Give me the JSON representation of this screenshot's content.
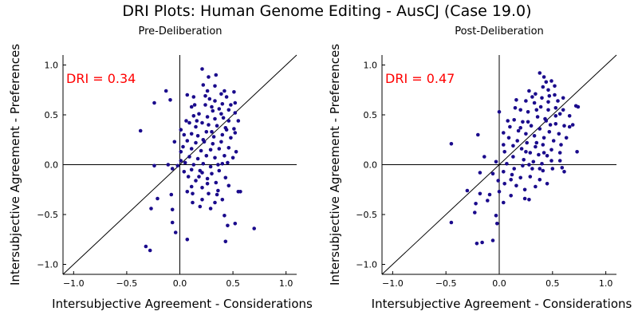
{
  "figure": {
    "title": "DRI Plots: Human Genome Editing - AusCJ (Case 19.0)"
  },
  "chart_data": [
    {
      "type": "scatter",
      "title": "Pre-Deliberation",
      "xlabel": "Intersubjective Agreement - Considerations",
      "ylabel": "Intersubjective Agreement - Preferences",
      "xlim": [
        -1.1,
        1.1
      ],
      "ylim": [
        -1.1,
        1.1
      ],
      "xticks": [
        "−1.0",
        "−0.5",
        "0.0",
        "0.5",
        "1.0"
      ],
      "yticks": [
        "−1.0",
        "−0.5",
        "0.0",
        "0.5",
        "1.0"
      ],
      "annotation": "DRI = 0.34",
      "annotation_color": "#ff0000",
      "point_color": "#1a0a8c",
      "reference_lines": [
        "x=0",
        "y=0",
        "y=x"
      ],
      "grid": false,
      "points": [
        [
          0.21,
          0.96
        ],
        [
          0.27,
          0.88
        ],
        [
          0.34,
          0.9
        ],
        [
          0.33,
          0.79
        ],
        [
          0.39,
          0.71
        ],
        [
          0.42,
          0.74
        ],
        [
          0.26,
          0.74
        ],
        [
          0.44,
          0.68
        ],
        [
          0.51,
          0.73
        ],
        [
          0.52,
          0.62
        ],
        [
          0.48,
          0.6
        ],
        [
          0.4,
          0.61
        ],
        [
          0.33,
          0.64
        ],
        [
          0.24,
          0.69
        ],
        [
          0.13,
          0.68
        ],
        [
          0.11,
          0.58
        ],
        [
          0.07,
          0.7
        ],
        [
          -0.13,
          0.74
        ],
        [
          -0.09,
          0.65
        ],
        [
          -0.24,
          0.62
        ],
        [
          0.24,
          0.6
        ],
        [
          0.3,
          0.58
        ],
        [
          0.37,
          0.56
        ],
        [
          0.46,
          0.55
        ],
        [
          0.52,
          0.52
        ],
        [
          0.18,
          0.51
        ],
        [
          0.13,
          0.49
        ],
        [
          0.26,
          0.48
        ],
        [
          0.33,
          0.46
        ],
        [
          0.41,
          0.47
        ],
        [
          0.46,
          0.44
        ],
        [
          0.55,
          0.44
        ],
        [
          0.51,
          0.36
        ],
        [
          0.43,
          0.37
        ],
        [
          0.35,
          0.39
        ],
        [
          0.27,
          0.4
        ],
        [
          0.21,
          0.42
        ],
        [
          0.15,
          0.38
        ],
        [
          0.09,
          0.42
        ],
        [
          0.06,
          0.44
        ],
        [
          0.11,
          0.31
        ],
        [
          0.17,
          0.29
        ],
        [
          0.25,
          0.33
        ],
        [
          0.32,
          0.28
        ],
        [
          0.4,
          0.3
        ],
        [
          0.48,
          0.27
        ],
        [
          0.39,
          0.23
        ],
        [
          0.31,
          0.21
        ],
        [
          0.23,
          0.23
        ],
        [
          0.15,
          0.22
        ],
        [
          0.07,
          0.24
        ],
        [
          0.03,
          0.18
        ],
        [
          0.11,
          0.16
        ],
        [
          0.2,
          0.14
        ],
        [
          0.29,
          0.15
        ],
        [
          0.37,
          0.16
        ],
        [
          0.46,
          0.17
        ],
        [
          0.53,
          0.13
        ],
        [
          0.42,
          0.09
        ],
        [
          0.33,
          0.07
        ],
        [
          0.25,
          0.09
        ],
        [
          0.17,
          0.06
        ],
        [
          0.09,
          0.08
        ],
        [
          0.01,
          0.13
        ],
        [
          -0.05,
          0.23
        ],
        [
          -0.37,
          0.34
        ],
        [
          0.01,
          0.04
        ],
        [
          0.05,
          0.02
        ],
        [
          0.13,
          0.0
        ],
        [
          0.22,
          0.01
        ],
        [
          0.29,
          -0.02
        ],
        [
          0.36,
          0.0
        ],
        [
          0.45,
          0.02
        ],
        [
          0.37,
          -0.06
        ],
        [
          0.3,
          -0.09
        ],
        [
          0.21,
          -0.08
        ],
        [
          0.11,
          -0.05
        ],
        [
          0.04,
          -0.07
        ],
        [
          -0.11,
          0.0
        ],
        [
          -0.24,
          -0.01
        ],
        [
          -0.02,
          -0.01
        ],
        [
          -0.07,
          -0.04
        ],
        [
          0.08,
          -0.12
        ],
        [
          0.15,
          -0.16
        ],
        [
          0.26,
          -0.14
        ],
        [
          0.34,
          -0.18
        ],
        [
          0.43,
          -0.13
        ],
        [
          0.21,
          -0.23
        ],
        [
          0.11,
          -0.22
        ],
        [
          0.12,
          -0.29
        ],
        [
          0.27,
          -0.29
        ],
        [
          0.36,
          -0.26
        ],
        [
          0.46,
          -0.21
        ],
        [
          0.21,
          -0.35
        ],
        [
          0.33,
          -0.38
        ],
        [
          0.4,
          -0.35
        ],
        [
          0.55,
          -0.27
        ],
        [
          0.57,
          -0.27
        ],
        [
          0.12,
          -0.38
        ],
        [
          0.19,
          -0.42
        ],
        [
          0.29,
          -0.44
        ],
        [
          0.42,
          -0.51
        ],
        [
          -0.08,
          -0.3
        ],
        [
          -0.21,
          -0.34
        ],
        [
          -0.27,
          -0.44
        ],
        [
          -0.07,
          -0.45
        ],
        [
          0.45,
          -0.61
        ],
        [
          0.52,
          -0.59
        ],
        [
          0.7,
          -0.64
        ],
        [
          -0.07,
          -0.58
        ],
        [
          -0.04,
          -0.68
        ],
        [
          0.07,
          -0.75
        ],
        [
          0.43,
          -0.77
        ],
        [
          -0.32,
          -0.82
        ],
        [
          -0.28,
          -0.86
        ],
        [
          0.01,
          0.35
        ],
        [
          0.22,
          0.8
        ],
        [
          0.31,
          0.54
        ],
        [
          0.44,
          0.35
        ],
        [
          0.19,
          -0.06
        ],
        [
          0.28,
          0.66
        ],
        [
          0.35,
          -0.3
        ],
        [
          0.26,
          -0.19
        ],
        [
          0.16,
          0.44
        ],
        [
          0.5,
          0.07
        ],
        [
          0.04,
          0.3
        ],
        [
          0.14,
          0.6
        ],
        [
          0.39,
          0.51
        ],
        [
          0.07,
          -0.27
        ],
        [
          0.3,
          0.33
        ],
        [
          0.4,
          0.01
        ],
        [
          0.52,
          0.32
        ],
        [
          0.22,
          0.25
        ],
        [
          0.18,
          -0.12
        ]
      ]
    },
    {
      "type": "scatter",
      "title": "Post-Deliberation",
      "xlabel": "Intersubjective Agreement - Considerations",
      "ylabel": "Intersubjective Agreement - Preferences",
      "xlim": [
        -1.1,
        1.1
      ],
      "ylim": [
        -1.1,
        1.1
      ],
      "xticks": [
        "−1.0",
        "−0.5",
        "0.0",
        "0.5",
        "1.0"
      ],
      "yticks": [
        "−1.0",
        "−0.5",
        "0.0",
        "0.5",
        "1.0"
      ],
      "annotation": "DRI = 0.47",
      "annotation_color": "#ff0000",
      "point_color": "#1a0a8c",
      "reference_lines": [
        "x=0",
        "y=0",
        "y=x"
      ],
      "grid": false,
      "points": [
        [
          0.38,
          0.92
        ],
        [
          0.42,
          0.88
        ],
        [
          0.44,
          0.83
        ],
        [
          0.49,
          0.84
        ],
        [
          0.41,
          0.78
        ],
        [
          0.46,
          0.75
        ],
        [
          0.52,
          0.79
        ],
        [
          0.34,
          0.71
        ],
        [
          0.4,
          0.67
        ],
        [
          0.47,
          0.69
        ],
        [
          0.55,
          0.64
        ],
        [
          0.6,
          0.67
        ],
        [
          0.72,
          0.59
        ],
        [
          0.74,
          0.58
        ],
        [
          0.28,
          0.74
        ],
        [
          0.25,
          0.64
        ],
        [
          0.33,
          0.62
        ],
        [
          0.39,
          0.58
        ],
        [
          0.46,
          0.55
        ],
        [
          0.53,
          0.57
        ],
        [
          0.57,
          0.51
        ],
        [
          0.66,
          0.49
        ],
        [
          0.69,
          0.4
        ],
        [
          0.61,
          0.39
        ],
        [
          0.53,
          0.41
        ],
        [
          0.44,
          0.44
        ],
        [
          0.36,
          0.48
        ],
        [
          0.27,
          0.53
        ],
        [
          0.2,
          0.55
        ],
        [
          0.15,
          0.57
        ],
        [
          0.14,
          0.45
        ],
        [
          0.22,
          0.43
        ],
        [
          0.3,
          0.39
        ],
        [
          0.38,
          0.36
        ],
        [
          0.47,
          0.33
        ],
        [
          0.56,
          0.31
        ],
        [
          0.63,
          0.27
        ],
        [
          0.73,
          0.13
        ],
        [
          0.51,
          0.24
        ],
        [
          0.42,
          0.27
        ],
        [
          0.33,
          0.29
        ],
        [
          0.25,
          0.31
        ],
        [
          0.18,
          0.34
        ],
        [
          0.1,
          0.38
        ],
        [
          0.0,
          0.53
        ],
        [
          0.04,
          0.32
        ],
        [
          0.09,
          0.27
        ],
        [
          0.17,
          0.24
        ],
        [
          0.26,
          0.22
        ],
        [
          0.34,
          0.18
        ],
        [
          0.41,
          0.2
        ],
        [
          0.49,
          0.15
        ],
        [
          0.57,
          0.12
        ],
        [
          0.45,
          0.09
        ],
        [
          0.37,
          0.1
        ],
        [
          0.29,
          0.12
        ],
        [
          0.21,
          0.16
        ],
        [
          0.13,
          0.19
        ],
        [
          0.04,
          0.2
        ],
        [
          -0.2,
          0.3
        ],
        [
          -0.45,
          0.21
        ],
        [
          0.05,
          0.13
        ],
        [
          0.13,
          0.08
        ],
        [
          0.23,
          0.05
        ],
        [
          0.32,
          0.03
        ],
        [
          0.4,
          0.01
        ],
        [
          0.49,
          0.04
        ],
        [
          0.57,
          0.04
        ],
        [
          0.59,
          -0.03
        ],
        [
          0.61,
          -0.07
        ],
        [
          0.5,
          -0.04
        ],
        [
          0.41,
          -0.06
        ],
        [
          0.31,
          -0.04
        ],
        [
          0.22,
          -0.01
        ],
        [
          0.14,
          -0.04
        ],
        [
          0.07,
          0.01
        ],
        [
          -0.03,
          0.03
        ],
        [
          -0.14,
          0.08
        ],
        [
          -0.18,
          -0.08
        ],
        [
          -0.06,
          -0.09
        ],
        [
          0.04,
          -0.07
        ],
        [
          0.11,
          -0.15
        ],
        [
          0.2,
          -0.13
        ],
        [
          0.29,
          -0.12
        ],
        [
          0.38,
          -0.15
        ],
        [
          0.45,
          -0.19
        ],
        [
          0.34,
          -0.22
        ],
        [
          0.24,
          -0.25
        ],
        [
          0.16,
          -0.21
        ],
        [
          0.05,
          -0.19
        ],
        [
          -0.01,
          -0.16
        ],
        [
          0.0,
          -0.27
        ],
        [
          -0.09,
          -0.3
        ],
        [
          -0.18,
          -0.29
        ],
        [
          -0.3,
          -0.26
        ],
        [
          0.11,
          -0.31
        ],
        [
          0.24,
          -0.34
        ],
        [
          0.28,
          -0.35
        ],
        [
          0.04,
          -0.38
        ],
        [
          -0.11,
          -0.36
        ],
        [
          -0.22,
          -0.39
        ],
        [
          -0.23,
          -0.48
        ],
        [
          -0.03,
          -0.51
        ],
        [
          -0.02,
          -0.59
        ],
        [
          -0.45,
          -0.58
        ],
        [
          -0.21,
          -0.79
        ],
        [
          -0.16,
          -0.78
        ],
        [
          -0.06,
          -0.76
        ],
        [
          0.35,
          0.55
        ],
        [
          0.43,
          0.46
        ],
        [
          0.28,
          0.0
        ],
        [
          0.16,
          0.65
        ],
        [
          0.52,
          0.7
        ],
        [
          0.38,
          -0.04
        ],
        [
          0.08,
          0.44
        ],
        [
          0.6,
          0.55
        ],
        [
          0.46,
          0.63
        ],
        [
          0.25,
          0.13
        ],
        [
          0.12,
          -0.1
        ],
        [
          0.31,
          0.68
        ],
        [
          0.53,
          0.49
        ],
        [
          0.66,
          0.38
        ],
        [
          0.2,
          0.37
        ],
        [
          0.48,
          0.4
        ],
        [
          0.35,
          0.22
        ],
        [
          0.58,
          0.2
        ],
        [
          0.42,
          0.12
        ],
        [
          0.27,
          0.43
        ]
      ]
    }
  ]
}
